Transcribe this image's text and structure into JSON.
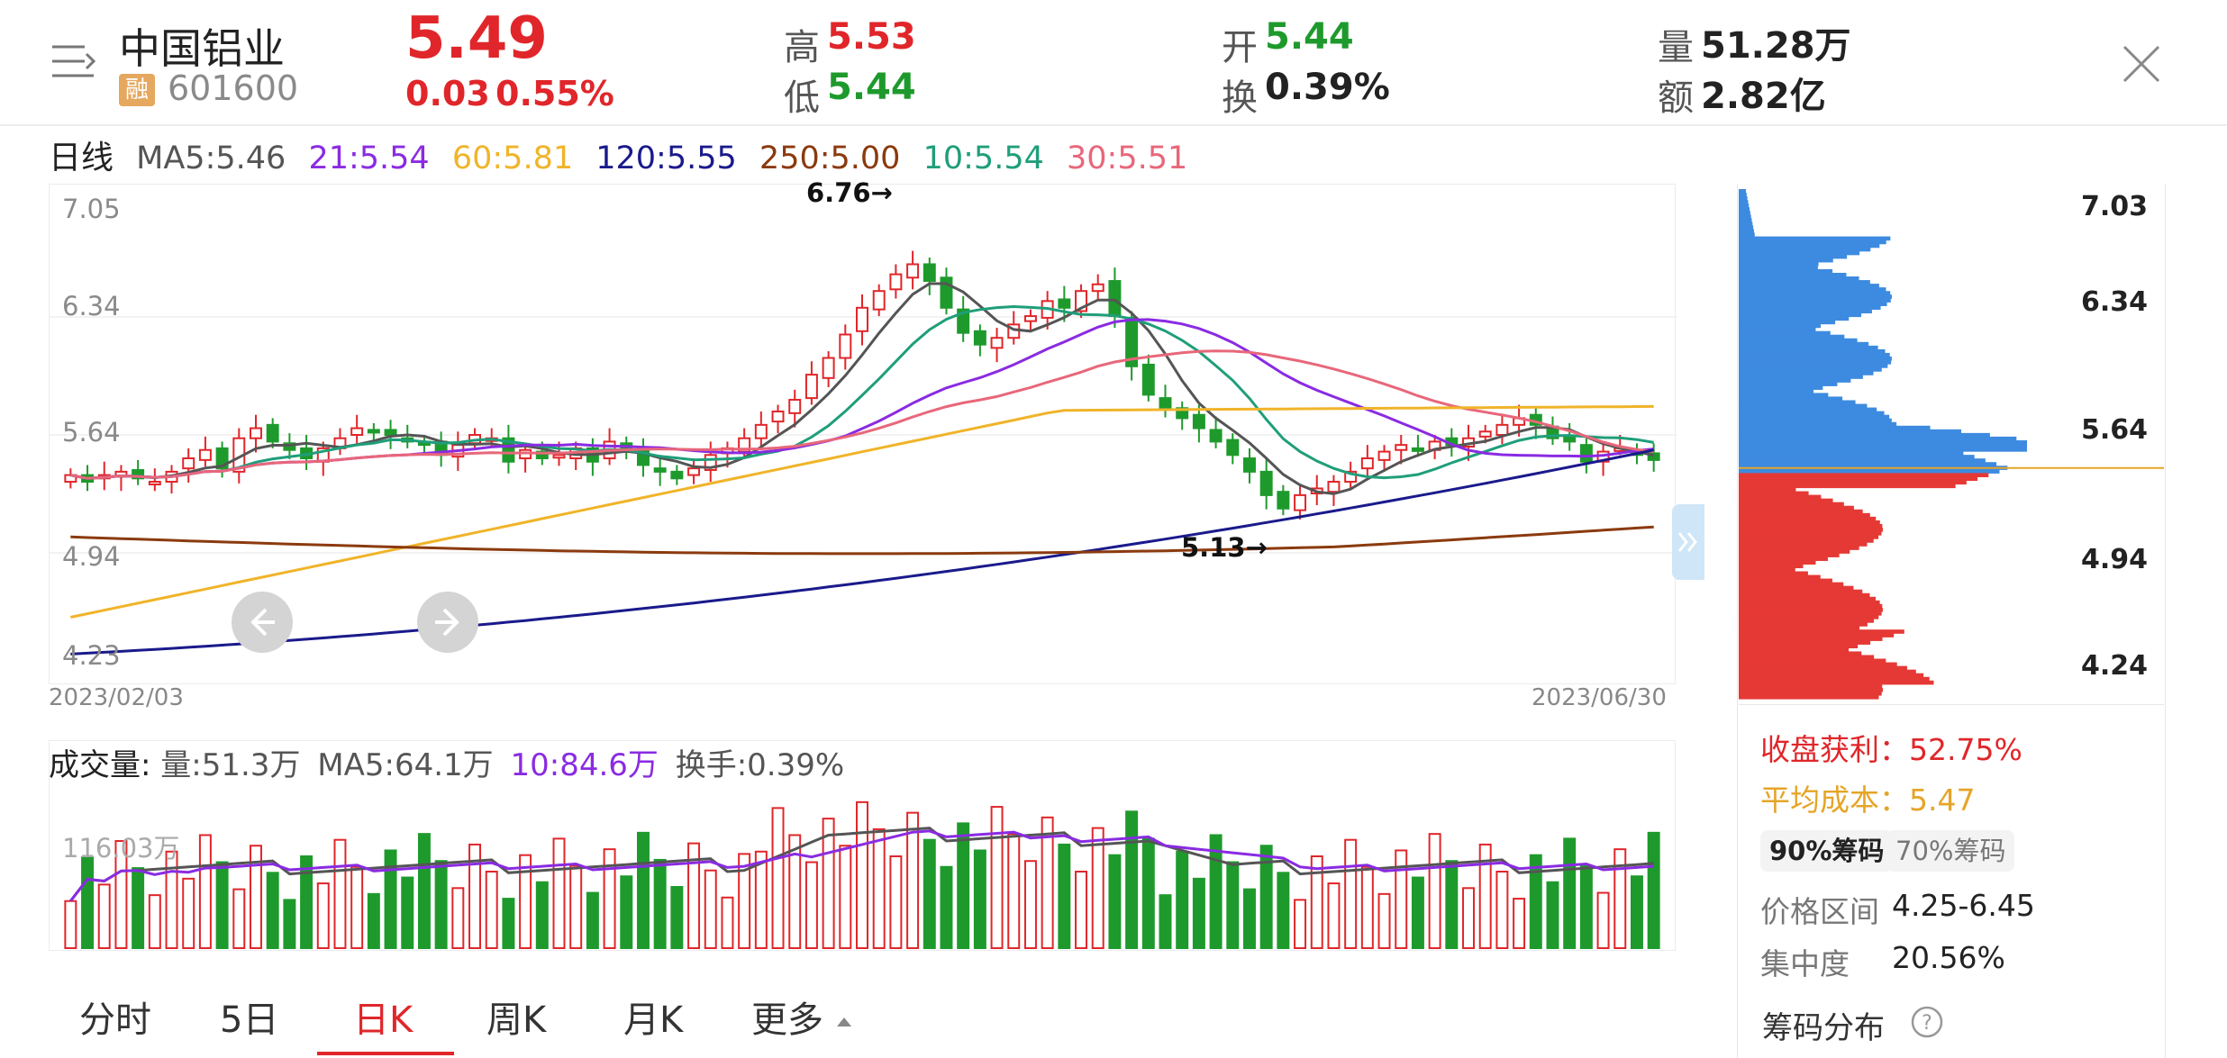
{
  "header": {
    "stock_name": "中国铝业",
    "margin_badge": "融",
    "code": "601600",
    "price": "5.49",
    "change": "0.03",
    "change_pct": "0.55%",
    "high_label": "高",
    "high_value": "5.53",
    "low_label": "低",
    "low_value": "5.44",
    "open_label": "开",
    "open_value": "5.44",
    "turnover_label": "换",
    "turnover_value": "0.39%",
    "volume_label": "量",
    "volume_value": "51.28万",
    "amount_label": "额",
    "amount_value": "2.82亿",
    "menu_icon": "menu-icon",
    "close_icon": "close-icon"
  },
  "ma_legend": {
    "period": "日线",
    "ma5": "MA5:5.46",
    "ma21": "21:5.54",
    "ma60": "60:5.81",
    "ma120": "120:5.55",
    "ma250": "250:5.00",
    "ma10": "10:5.54",
    "ma30": "30:5.51"
  },
  "price_chart": {
    "y_labels": [
      "7.05",
      "6.34",
      "5.64",
      "4.94",
      "4.23"
    ],
    "max_marker": "6.76→",
    "min_marker": "5.13→",
    "start_date": "2023/02/03",
    "end_date": "2023/06/30",
    "prev_icon": "arrow-left-icon",
    "next_icon": "arrow-right-icon",
    "expand_icon": "double-chevron-right-icon"
  },
  "volume_chart": {
    "title": "成交量:",
    "vol": "量:51.3万",
    "ma5": "MA5:64.1万",
    "ma10": "10:84.6万",
    "turnover": "换手:0.39%",
    "axis_label": "116.03万"
  },
  "chip_panel": {
    "price_labels": [
      "7.03",
      "6.34",
      "5.64",
      "4.94",
      "4.24"
    ],
    "profit_label": "收盘获利：52.75%",
    "avg_cost_label": "平均成本：5.47",
    "tab_90": "90%筹码",
    "tab_70": "70%筹码",
    "range_label": "价格区间",
    "range_value": "4.25-6.45",
    "concentration_label": "集中度",
    "concentration_value": "20.56%",
    "distribution_label": "筹码分布",
    "help_icon": "help-icon"
  },
  "tabs": [
    "分时",
    "5日",
    "日K",
    "周K",
    "月K",
    "更多"
  ],
  "active_tab": "日K",
  "colors": {
    "up": "#e0262a",
    "down": "#1e9a2c",
    "ma5": "#555555",
    "ma10": "#1f9e7a",
    "ma21": "#8a2be2",
    "ma30": "#e8677a",
    "ma60": "#f0b429",
    "ma120": "#1a1a8c",
    "ma250": "#8b3a0e",
    "chip_profit": "#e53935",
    "chip_loss": "#3d8be0"
  },
  "chart_data": {
    "type": "candlestick",
    "x_start": "2023/02/03",
    "x_end": "2023/06/30",
    "y_range": [
      4.23,
      7.05
    ],
    "max_price": 6.76,
    "min_price": 5.13,
    "ma_latest": {
      "MA5": 5.46,
      "MA10": 5.54,
      "MA21": 5.54,
      "MA30": 5.51,
      "MA60": 5.81,
      "MA120": 5.55,
      "MA250": 5.0
    },
    "close_approx": [
      5.4,
      5.36,
      5.4,
      5.42,
      5.38,
      5.36,
      5.42,
      5.5,
      5.55,
      5.44,
      5.62,
      5.68,
      5.6,
      5.55,
      5.5,
      5.56,
      5.62,
      5.68,
      5.66,
      5.64,
      5.6,
      5.58,
      5.52,
      5.58,
      5.64,
      5.62,
      5.48,
      5.55,
      5.5,
      5.52,
      5.56,
      5.48,
      5.6,
      5.55,
      5.46,
      5.42,
      5.38,
      5.44,
      5.52,
      5.56,
      5.62,
      5.7,
      5.78,
      5.85,
      6.0,
      6.1,
      6.24,
      6.4,
      6.5,
      6.6,
      6.66,
      6.56,
      6.4,
      6.25,
      6.18,
      6.22,
      6.3,
      6.35,
      6.44,
      6.4,
      6.5,
      6.54,
      6.35,
      6.05,
      5.88,
      5.8,
      5.74,
      5.68,
      5.6,
      5.52,
      5.42,
      5.28,
      5.2,
      5.28,
      5.32,
      5.36,
      5.42,
      5.5,
      5.54,
      5.58,
      5.55,
      5.6,
      5.58,
      5.62,
      5.66,
      5.7,
      5.74,
      5.7,
      5.62,
      5.6,
      5.48,
      5.54,
      5.56,
      5.52,
      5.49
    ]
  }
}
